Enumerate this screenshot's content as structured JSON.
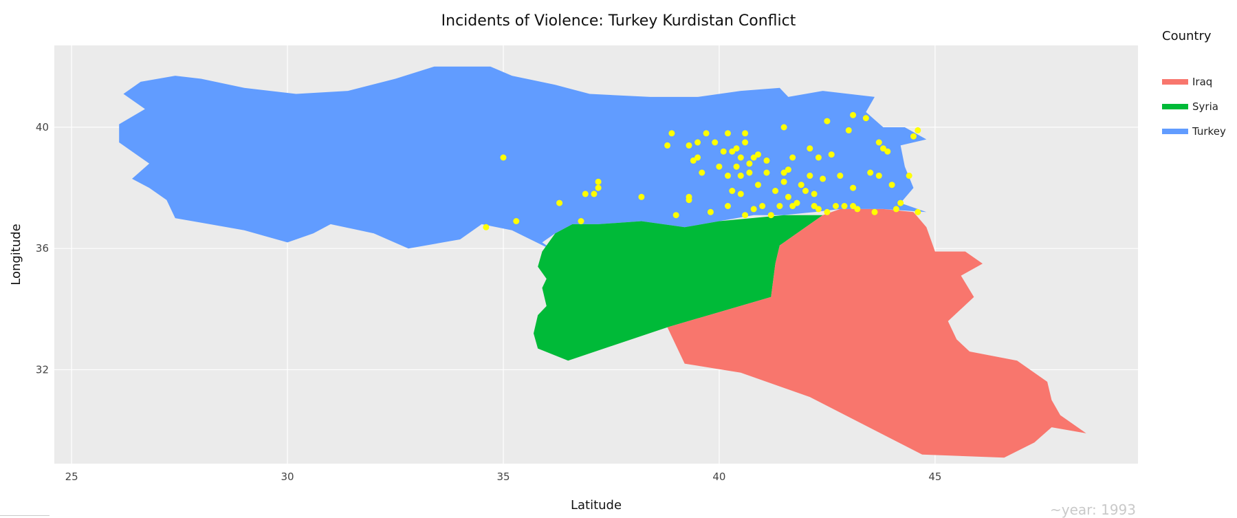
{
  "title": "Incidents of Violence: Turkey Kurdistan Conflict",
  "x_axis": {
    "label": "Latitude",
    "ticks": [
      25,
      30,
      35,
      40,
      45
    ],
    "range": [
      24.6,
      49.7
    ]
  },
  "y_axis": {
    "label": "Longitude",
    "ticks": [
      32,
      36,
      40
    ],
    "range": [
      28.9,
      42.7
    ]
  },
  "legend": {
    "title": "Country",
    "items": [
      {
        "label": "Iraq",
        "color": "#F8766D"
      },
      {
        "label": "Syria",
        "color": "#00BA38"
      },
      {
        "label": "Turkey",
        "color": "#619CFF"
      }
    ]
  },
  "point_color": "#FFFF00",
  "panel_background": "#EBEBEB",
  "grid_color": "#FFFFFF",
  "frame_label": "~year: 1993",
  "chart_data": {
    "type": "scatter",
    "title": "Incidents of Violence: Turkey Kurdistan Conflict",
    "xlabel": "Latitude",
    "ylabel": "Longitude",
    "xlim": [
      24.6,
      49.7
    ],
    "ylim": [
      28.9,
      42.7
    ],
    "grid": true,
    "legend_position": "right",
    "regions": [
      {
        "name": "Turkey",
        "color": "#619CFF",
        "coords": [
          [
            26.1,
            40.1
          ],
          [
            26.7,
            40.6
          ],
          [
            26.2,
            41.1
          ],
          [
            26.6,
            41.5
          ],
          [
            27.4,
            41.7
          ],
          [
            28.0,
            41.6
          ],
          [
            29.0,
            41.3
          ],
          [
            30.2,
            41.1
          ],
          [
            31.4,
            41.2
          ],
          [
            32.5,
            41.6
          ],
          [
            33.4,
            42.0
          ],
          [
            34.7,
            42.0
          ],
          [
            35.2,
            41.7
          ],
          [
            36.2,
            41.4
          ],
          [
            37.0,
            41.1
          ],
          [
            38.4,
            41.0
          ],
          [
            39.5,
            41.0
          ],
          [
            40.5,
            41.2
          ],
          [
            41.4,
            41.3
          ],
          [
            41.6,
            41.0
          ],
          [
            42.4,
            41.2
          ],
          [
            43.0,
            41.1
          ],
          [
            43.6,
            41.0
          ],
          [
            43.4,
            40.5
          ],
          [
            43.8,
            40.0
          ],
          [
            44.3,
            40.0
          ],
          [
            44.8,
            39.6
          ],
          [
            44.2,
            39.4
          ],
          [
            44.3,
            38.7
          ],
          [
            44.5,
            38.0
          ],
          [
            44.2,
            37.5
          ],
          [
            44.8,
            37.2
          ],
          [
            43.8,
            37.3
          ],
          [
            42.8,
            37.3
          ],
          [
            42.2,
            37.2
          ],
          [
            41.5,
            37.1
          ],
          [
            40.8,
            37.1
          ],
          [
            40.0,
            36.9
          ],
          [
            39.2,
            36.7
          ],
          [
            38.2,
            36.9
          ],
          [
            37.2,
            36.8
          ],
          [
            36.6,
            36.8
          ],
          [
            36.2,
            36.5
          ],
          [
            35.9,
            36.2
          ],
          [
            36.2,
            35.9
          ],
          [
            35.2,
            36.6
          ],
          [
            34.5,
            36.8
          ],
          [
            34.0,
            36.3
          ],
          [
            33.6,
            36.2
          ],
          [
            32.8,
            36.0
          ],
          [
            32.0,
            36.5
          ],
          [
            31.0,
            36.8
          ],
          [
            30.6,
            36.5
          ],
          [
            30.0,
            36.2
          ],
          [
            29.0,
            36.6
          ],
          [
            28.2,
            36.8
          ],
          [
            27.4,
            37.0
          ],
          [
            27.2,
            37.6
          ],
          [
            26.8,
            38.0
          ],
          [
            26.4,
            38.3
          ],
          [
            26.8,
            38.8
          ],
          [
            26.5,
            39.1
          ],
          [
            26.1,
            39.5
          ]
        ]
      },
      {
        "name": "Syria",
        "color": "#00BA38",
        "coords": [
          [
            35.9,
            35.9
          ],
          [
            35.8,
            35.4
          ],
          [
            36.0,
            35.0
          ],
          [
            35.9,
            34.7
          ],
          [
            36.0,
            34.1
          ],
          [
            35.8,
            33.8
          ],
          [
            35.7,
            33.2
          ],
          [
            35.8,
            32.7
          ],
          [
            36.5,
            32.3
          ],
          [
            38.8,
            33.4
          ],
          [
            41.2,
            34.4
          ],
          [
            41.3,
            35.5
          ],
          [
            41.4,
            36.1
          ],
          [
            42.4,
            37.1
          ],
          [
            41.5,
            37.1
          ],
          [
            40.0,
            36.9
          ],
          [
            39.2,
            36.7
          ],
          [
            38.2,
            36.9
          ],
          [
            37.2,
            36.8
          ],
          [
            36.6,
            36.8
          ],
          [
            36.2,
            36.5
          ]
        ]
      },
      {
        "name": "Iraq",
        "color": "#F8766D",
        "coords": [
          [
            38.8,
            33.4
          ],
          [
            39.2,
            32.2
          ],
          [
            40.5,
            31.9
          ],
          [
            42.1,
            31.1
          ],
          [
            44.7,
            29.2
          ],
          [
            46.6,
            29.1
          ],
          [
            47.3,
            29.6
          ],
          [
            47.7,
            30.1
          ],
          [
            48.5,
            29.9
          ],
          [
            47.9,
            30.5
          ],
          [
            47.7,
            31.0
          ],
          [
            47.6,
            31.6
          ],
          [
            46.9,
            32.3
          ],
          [
            45.8,
            32.6
          ],
          [
            45.5,
            33.0
          ],
          [
            45.3,
            33.6
          ],
          [
            45.9,
            34.4
          ],
          [
            45.6,
            35.1
          ],
          [
            46.1,
            35.5
          ],
          [
            45.7,
            35.9
          ],
          [
            45.0,
            35.9
          ],
          [
            44.8,
            36.7
          ],
          [
            44.5,
            37.2
          ],
          [
            43.8,
            37.3
          ],
          [
            42.8,
            37.3
          ],
          [
            42.4,
            37.1
          ],
          [
            41.4,
            36.1
          ],
          [
            41.3,
            35.5
          ],
          [
            41.2,
            34.4
          ]
        ]
      }
    ],
    "points": [
      [
        35.0,
        39.0
      ],
      [
        35.3,
        36.9
      ],
      [
        34.6,
        36.7
      ],
      [
        36.3,
        37.5
      ],
      [
        36.8,
        36.9
      ],
      [
        36.9,
        37.8
      ],
      [
        37.1,
        37.8
      ],
      [
        37.2,
        38.0
      ],
      [
        37.2,
        38.2
      ],
      [
        38.2,
        37.7
      ],
      [
        38.8,
        39.4
      ],
      [
        38.9,
        39.8
      ],
      [
        39.0,
        37.1
      ],
      [
        39.3,
        39.4
      ],
      [
        39.4,
        38.9
      ],
      [
        39.5,
        39.0
      ],
      [
        39.5,
        39.5
      ],
      [
        39.6,
        38.5
      ],
      [
        39.7,
        39.8
      ],
      [
        39.3,
        37.7
      ],
      [
        39.3,
        37.6
      ],
      [
        39.8,
        37.2
      ],
      [
        39.9,
        39.5
      ],
      [
        40.0,
        38.7
      ],
      [
        40.1,
        39.2
      ],
      [
        40.2,
        39.8
      ],
      [
        40.2,
        38.4
      ],
      [
        40.3,
        39.2
      ],
      [
        40.3,
        37.9
      ],
      [
        40.4,
        39.3
      ],
      [
        40.4,
        38.7
      ],
      [
        40.5,
        38.4
      ],
      [
        40.5,
        39.0
      ],
      [
        40.6,
        39.8
      ],
      [
        40.6,
        39.5
      ],
      [
        40.7,
        38.8
      ],
      [
        40.7,
        38.5
      ],
      [
        40.8,
        39.0
      ],
      [
        40.9,
        39.1
      ],
      [
        41.0,
        37.4
      ],
      [
        40.2,
        37.4
      ],
      [
        40.5,
        37.8
      ],
      [
        40.6,
        37.1
      ],
      [
        40.8,
        37.3
      ],
      [
        40.9,
        38.1
      ],
      [
        41.1,
        38.5
      ],
      [
        41.1,
        38.9
      ],
      [
        41.2,
        37.1
      ],
      [
        41.3,
        37.9
      ],
      [
        41.4,
        37.4
      ],
      [
        41.5,
        38.2
      ],
      [
        41.5,
        38.5
      ],
      [
        41.6,
        38.6
      ],
      [
        41.6,
        37.7
      ],
      [
        41.7,
        39.0
      ],
      [
        41.5,
        40.0
      ],
      [
        41.8,
        37.5
      ],
      [
        41.9,
        38.1
      ],
      [
        42.0,
        37.9
      ],
      [
        42.1,
        38.4
      ],
      [
        42.1,
        39.3
      ],
      [
        42.2,
        37.8
      ],
      [
        42.2,
        37.4
      ],
      [
        42.3,
        39.0
      ],
      [
        42.4,
        38.3
      ],
      [
        42.5,
        40.2
      ],
      [
        42.5,
        37.2
      ],
      [
        42.6,
        39.1
      ],
      [
        42.7,
        37.4
      ],
      [
        42.8,
        38.4
      ],
      [
        42.9,
        37.4
      ],
      [
        43.0,
        39.9
      ],
      [
        43.1,
        40.4
      ],
      [
        43.1,
        38.0
      ],
      [
        43.2,
        37.3
      ],
      [
        43.4,
        40.3
      ],
      [
        43.5,
        38.5
      ],
      [
        43.6,
        37.2
      ],
      [
        43.7,
        38.4
      ],
      [
        43.7,
        39.5
      ],
      [
        43.8,
        39.3
      ],
      [
        43.9,
        39.2
      ],
      [
        44.0,
        38.1
      ],
      [
        44.1,
        37.3
      ],
      [
        44.2,
        37.5
      ],
      [
        44.4,
        38.4
      ],
      [
        44.5,
        39.7
      ],
      [
        44.6,
        37.2
      ],
      [
        44.6,
        39.9
      ],
      [
        43.1,
        37.4
      ],
      [
        41.7,
        37.4
      ],
      [
        42.3,
        37.3
      ]
    ]
  }
}
